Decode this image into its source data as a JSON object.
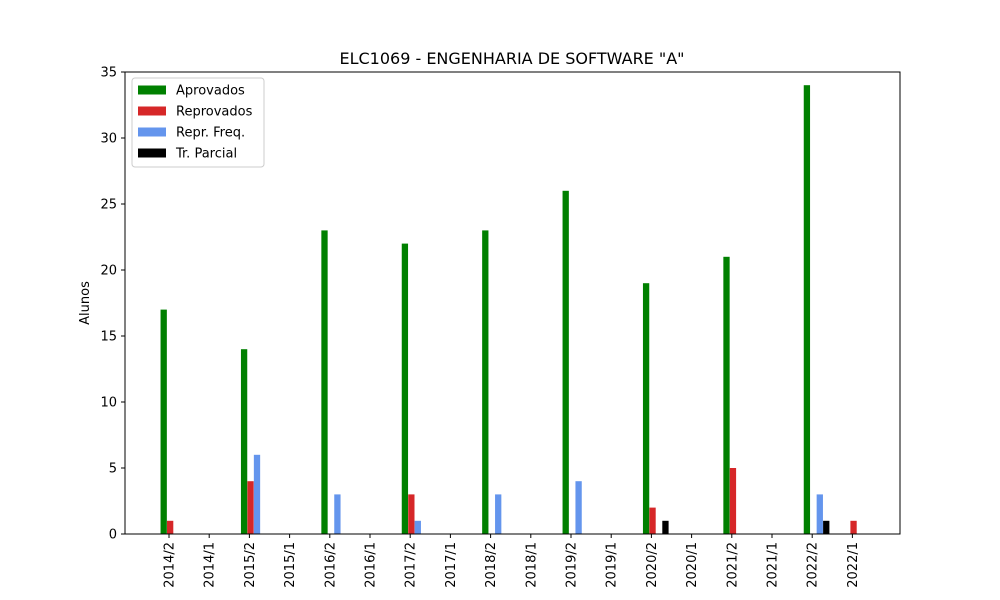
{
  "chart_data": {
    "type": "bar",
    "title": "ELC1069 - ENGENHARIA DE SOFTWARE \"A\"",
    "xlabel": "",
    "ylabel": "Alunos",
    "ylim": [
      0,
      35
    ],
    "yticks": [
      0,
      5,
      10,
      15,
      20,
      25,
      30,
      35
    ],
    "grid": false,
    "legend_position": "top-left",
    "categories": [
      "2014/2",
      "2014/1",
      "2015/2",
      "2015/1",
      "2016/2",
      "2016/1",
      "2017/2",
      "2017/1",
      "2018/2",
      "2018/1",
      "2019/2",
      "2019/1",
      "2020/2",
      "2020/1",
      "2021/2",
      "2021/1",
      "2022/2",
      "2022/1"
    ],
    "series": [
      {
        "name": "Aprovados",
        "color": "#008000",
        "values": [
          17,
          0,
          14,
          0,
          23,
          0,
          22,
          0,
          23,
          0,
          26,
          0,
          19,
          0,
          21,
          0,
          34,
          0
        ]
      },
      {
        "name": "Reprovados",
        "color": "#d62728",
        "values": [
          1,
          0,
          4,
          0,
          0,
          0,
          3,
          0,
          0,
          0,
          0,
          0,
          2,
          0,
          5,
          0,
          0,
          1
        ]
      },
      {
        "name": "Repr. Freq.",
        "color": "#6495ed",
        "values": [
          0,
          0,
          6,
          0,
          3,
          0,
          1,
          0,
          3,
          0,
          4,
          0,
          0,
          0,
          0,
          0,
          3,
          0
        ]
      },
      {
        "name": "Tr. Parcial",
        "color": "#000000",
        "values": [
          0,
          0,
          0,
          0,
          0,
          0,
          0,
          0,
          0,
          0,
          0,
          0,
          1,
          0,
          0,
          0,
          1,
          0
        ]
      }
    ]
  }
}
